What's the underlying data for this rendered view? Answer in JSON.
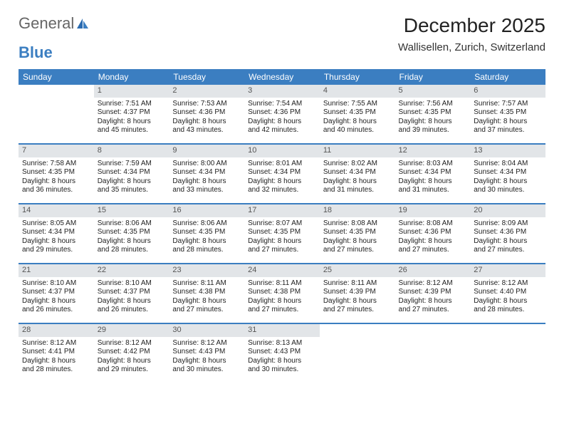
{
  "logo": {
    "part1": "General",
    "part2": "Blue"
  },
  "title": "December 2025",
  "location": "Wallisellen, Zurich, Switzerland",
  "colors": {
    "header_bg": "#3b7ec1",
    "header_text": "#ffffff",
    "daynum_bg": "#e2e5e8",
    "row_border": "#3b7ec1",
    "body_text": "#222222",
    "logo_gray": "#666666",
    "logo_blue": "#3b7ec1"
  },
  "weekdays": [
    "Sunday",
    "Monday",
    "Tuesday",
    "Wednesday",
    "Thursday",
    "Friday",
    "Saturday"
  ],
  "weeks": [
    [
      null,
      {
        "n": "1",
        "sunrise": "7:51 AM",
        "sunset": "4:37 PM",
        "d1": "Daylight: 8 hours",
        "d2": "and 45 minutes."
      },
      {
        "n": "2",
        "sunrise": "7:53 AM",
        "sunset": "4:36 PM",
        "d1": "Daylight: 8 hours",
        "d2": "and 43 minutes."
      },
      {
        "n": "3",
        "sunrise": "7:54 AM",
        "sunset": "4:36 PM",
        "d1": "Daylight: 8 hours",
        "d2": "and 42 minutes."
      },
      {
        "n": "4",
        "sunrise": "7:55 AM",
        "sunset": "4:35 PM",
        "d1": "Daylight: 8 hours",
        "d2": "and 40 minutes."
      },
      {
        "n": "5",
        "sunrise": "7:56 AM",
        "sunset": "4:35 PM",
        "d1": "Daylight: 8 hours",
        "d2": "and 39 minutes."
      },
      {
        "n": "6",
        "sunrise": "7:57 AM",
        "sunset": "4:35 PM",
        "d1": "Daylight: 8 hours",
        "d2": "and 37 minutes."
      }
    ],
    [
      {
        "n": "7",
        "sunrise": "7:58 AM",
        "sunset": "4:35 PM",
        "d1": "Daylight: 8 hours",
        "d2": "and 36 minutes."
      },
      {
        "n": "8",
        "sunrise": "7:59 AM",
        "sunset": "4:34 PM",
        "d1": "Daylight: 8 hours",
        "d2": "and 35 minutes."
      },
      {
        "n": "9",
        "sunrise": "8:00 AM",
        "sunset": "4:34 PM",
        "d1": "Daylight: 8 hours",
        "d2": "and 33 minutes."
      },
      {
        "n": "10",
        "sunrise": "8:01 AM",
        "sunset": "4:34 PM",
        "d1": "Daylight: 8 hours",
        "d2": "and 32 minutes."
      },
      {
        "n": "11",
        "sunrise": "8:02 AM",
        "sunset": "4:34 PM",
        "d1": "Daylight: 8 hours",
        "d2": "and 31 minutes."
      },
      {
        "n": "12",
        "sunrise": "8:03 AM",
        "sunset": "4:34 PM",
        "d1": "Daylight: 8 hours",
        "d2": "and 31 minutes."
      },
      {
        "n": "13",
        "sunrise": "8:04 AM",
        "sunset": "4:34 PM",
        "d1": "Daylight: 8 hours",
        "d2": "and 30 minutes."
      }
    ],
    [
      {
        "n": "14",
        "sunrise": "8:05 AM",
        "sunset": "4:34 PM",
        "d1": "Daylight: 8 hours",
        "d2": "and 29 minutes."
      },
      {
        "n": "15",
        "sunrise": "8:06 AM",
        "sunset": "4:35 PM",
        "d1": "Daylight: 8 hours",
        "d2": "and 28 minutes."
      },
      {
        "n": "16",
        "sunrise": "8:06 AM",
        "sunset": "4:35 PM",
        "d1": "Daylight: 8 hours",
        "d2": "and 28 minutes."
      },
      {
        "n": "17",
        "sunrise": "8:07 AM",
        "sunset": "4:35 PM",
        "d1": "Daylight: 8 hours",
        "d2": "and 27 minutes."
      },
      {
        "n": "18",
        "sunrise": "8:08 AM",
        "sunset": "4:35 PM",
        "d1": "Daylight: 8 hours",
        "d2": "and 27 minutes."
      },
      {
        "n": "19",
        "sunrise": "8:08 AM",
        "sunset": "4:36 PM",
        "d1": "Daylight: 8 hours",
        "d2": "and 27 minutes."
      },
      {
        "n": "20",
        "sunrise": "8:09 AM",
        "sunset": "4:36 PM",
        "d1": "Daylight: 8 hours",
        "d2": "and 27 minutes."
      }
    ],
    [
      {
        "n": "21",
        "sunrise": "8:10 AM",
        "sunset": "4:37 PM",
        "d1": "Daylight: 8 hours",
        "d2": "and 26 minutes."
      },
      {
        "n": "22",
        "sunrise": "8:10 AM",
        "sunset": "4:37 PM",
        "d1": "Daylight: 8 hours",
        "d2": "and 26 minutes."
      },
      {
        "n": "23",
        "sunrise": "8:11 AM",
        "sunset": "4:38 PM",
        "d1": "Daylight: 8 hours",
        "d2": "and 27 minutes."
      },
      {
        "n": "24",
        "sunrise": "8:11 AM",
        "sunset": "4:38 PM",
        "d1": "Daylight: 8 hours",
        "d2": "and 27 minutes."
      },
      {
        "n": "25",
        "sunrise": "8:11 AM",
        "sunset": "4:39 PM",
        "d1": "Daylight: 8 hours",
        "d2": "and 27 minutes."
      },
      {
        "n": "26",
        "sunrise": "8:12 AM",
        "sunset": "4:39 PM",
        "d1": "Daylight: 8 hours",
        "d2": "and 27 minutes."
      },
      {
        "n": "27",
        "sunrise": "8:12 AM",
        "sunset": "4:40 PM",
        "d1": "Daylight: 8 hours",
        "d2": "and 28 minutes."
      }
    ],
    [
      {
        "n": "28",
        "sunrise": "8:12 AM",
        "sunset": "4:41 PM",
        "d1": "Daylight: 8 hours",
        "d2": "and 28 minutes."
      },
      {
        "n": "29",
        "sunrise": "8:12 AM",
        "sunset": "4:42 PM",
        "d1": "Daylight: 8 hours",
        "d2": "and 29 minutes."
      },
      {
        "n": "30",
        "sunrise": "8:12 AM",
        "sunset": "4:43 PM",
        "d1": "Daylight: 8 hours",
        "d2": "and 30 minutes."
      },
      {
        "n": "31",
        "sunrise": "8:13 AM",
        "sunset": "4:43 PM",
        "d1": "Daylight: 8 hours",
        "d2": "and 30 minutes."
      },
      null,
      null,
      null
    ]
  ],
  "labels": {
    "sunrise": "Sunrise:",
    "sunset": "Sunset:"
  }
}
